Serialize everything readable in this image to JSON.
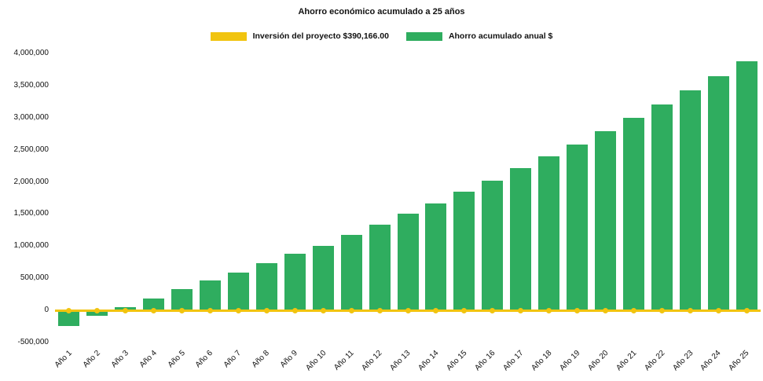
{
  "chart_data": {
    "type": "bar",
    "title": "Ahorro económico acumulado a 25 años",
    "categories": [
      "Año 1",
      "Año 2",
      "Año 3",
      "Año 4",
      "Año 5",
      "Año 6",
      "Año 7",
      "Año 8",
      "Año 9",
      "Año 10",
      "Año 11",
      "Año 12",
      "Año 13",
      "Año 14",
      "Año 15",
      "Año 16",
      "Año 17",
      "Año 18",
      "Año 19",
      "Año 20",
      "Año 21",
      "Año 22",
      "Año 23",
      "Año 24",
      "Año 25"
    ],
    "series": [
      {
        "name": "Inversión del proyecto $390,166.00",
        "type": "line",
        "color": "#f1c40f",
        "marker": "circle",
        "value": 0
      },
      {
        "name": "Ahorro acumulado anual $",
        "type": "bar",
        "color": "#2fad5f",
        "values": [
          -240000,
          -90000,
          50000,
          190000,
          330000,
          460000,
          590000,
          730000,
          880000,
          1010000,
          1170000,
          1330000,
          1500000,
          1660000,
          1850000,
          2020000,
          2210000,
          2400000,
          2580000,
          2790000,
          3000000,
          3200000,
          3420000,
          3640000,
          3880000
        ]
      }
    ],
    "xlabel": "",
    "ylabel": "",
    "ylim": [
      -500000,
      4000000
    ],
    "yticks": [
      -500000,
      0,
      500000,
      1000000,
      1500000,
      2000000,
      2500000,
      3000000,
      3500000,
      4000000
    ],
    "grid": false,
    "legend_position": "top",
    "background": "#ffffff"
  }
}
